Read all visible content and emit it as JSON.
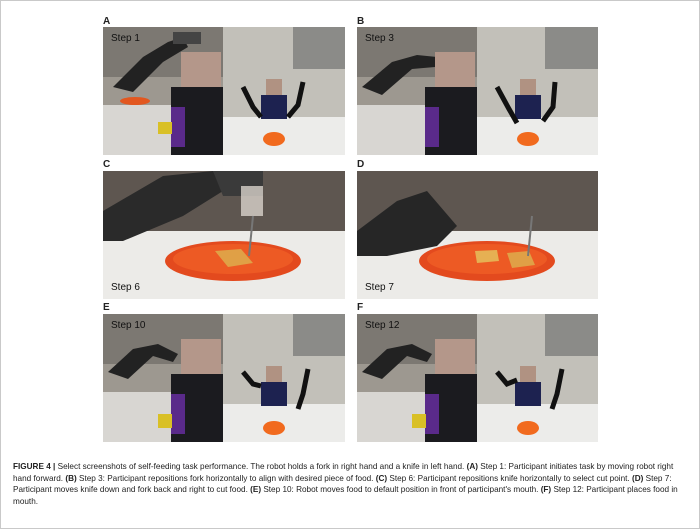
{
  "panels": [
    {
      "letter": "A",
      "step": "Step 1"
    },
    {
      "letter": "B",
      "step": "Step 3"
    },
    {
      "letter": "C",
      "step": "Step 6"
    },
    {
      "letter": "D",
      "step": "Step 7"
    },
    {
      "letter": "E",
      "step": "Step 10"
    },
    {
      "letter": "F",
      "step": "Step 12"
    }
  ],
  "caption": {
    "figure_label": "FIGURE 4 |",
    "intro": " Select screenshots of self-feeding task performance. The robot holds a fork in right hand and a knife in left hand. ",
    "a_label": "(A)",
    "a_text": " Step 1: Participant initiates task by moving robot right hand forward. ",
    "b_label": "(B)",
    "b_text": " Step 3: Participant repositions fork horizontally to align with desired piece of food. ",
    "c_label": "(C)",
    "c_text": " Step 6: Participant repositions knife horizontally to select cut point. ",
    "d_label": "(D)",
    "d_text": " Step 7: Participant moves knife down and fork back and right to cut food. ",
    "e_label": "(E)",
    "e_text": " Step 10: Robot moves food to default position in front of participant's mouth. ",
    "f_label": "(F)",
    "f_text": " Step 12: Participant places food in mouth."
  }
}
